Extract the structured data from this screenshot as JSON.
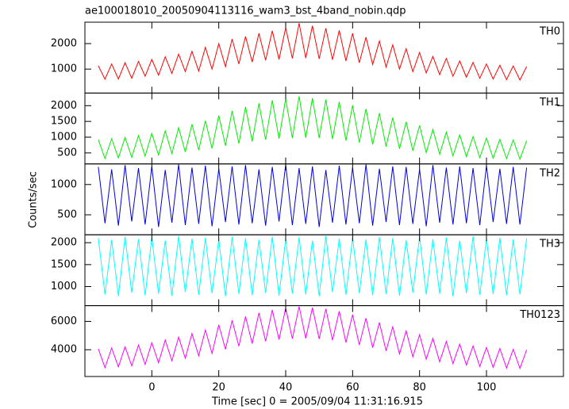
{
  "chart_data": {
    "type": "line",
    "title": "ae100018010_20050904113116_wam3_bst_4band_nobin.qdp",
    "xlabel": "Time [sec] 0 = 2005/09/04 11:31:16.915",
    "ylabel": "Counts/sec",
    "xlim": [
      -20,
      123
    ],
    "xticks": [
      0,
      20,
      40,
      60,
      80,
      100
    ],
    "x": [
      -16,
      -14,
      -12,
      -10,
      -8,
      -6,
      -4,
      -2,
      0,
      2,
      4,
      6,
      8,
      10,
      12,
      14,
      16,
      18,
      20,
      22,
      24,
      26,
      28,
      30,
      32,
      34,
      36,
      38,
      40,
      42,
      44,
      46,
      48,
      50,
      52,
      54,
      56,
      58,
      60,
      62,
      64,
      66,
      68,
      70,
      72,
      74,
      76,
      78,
      80,
      82,
      84,
      86,
      88,
      90,
      92,
      94,
      96,
      98,
      100,
      102,
      104,
      106,
      108,
      110,
      112
    ],
    "series": [
      {
        "name": "TH0",
        "color": "#ff0000",
        "ylim": [
          60,
          2840
        ],
        "yticks": [
          1000,
          2000
        ],
        "values": [
          1130,
          600,
          1200,
          610,
          1250,
          640,
          1300,
          720,
          1380,
          760,
          1480,
          830,
          1590,
          900,
          1700,
          920,
          1850,
          1000,
          2000,
          1100,
          2180,
          1200,
          2280,
          1280,
          2400,
          1350,
          2500,
          1380,
          2620,
          1420,
          2800,
          1430,
          2700,
          1400,
          2600,
          1370,
          2520,
          1320,
          2400,
          1250,
          2250,
          1180,
          2100,
          1080,
          1950,
          1000,
          1800,
          900,
          1650,
          850,
          1500,
          780,
          1420,
          720,
          1320,
          680,
          1260,
          640,
          1200,
          610,
          1150,
          590,
          1120,
          570,
          1100
        ]
      },
      {
        "name": "TH1",
        "color": "#00ee00",
        "ylim": [
          150,
          2400
        ],
        "yticks": [
          500,
          1000,
          1500,
          2000
        ],
        "values": [
          920,
          320,
          950,
          340,
          990,
          360,
          1050,
          400,
          1120,
          430,
          1200,
          480,
          1300,
          530,
          1410,
          590,
          1520,
          640,
          1690,
          730,
          1830,
          800,
          1960,
          860,
          2070,
          920,
          2170,
          950,
          2220,
          970,
          2300,
          980,
          2240,
          970,
          2190,
          940,
          2120,
          890,
          2010,
          830,
          1900,
          770,
          1760,
          700,
          1620,
          630,
          1490,
          570,
          1370,
          510,
          1250,
          460,
          1160,
          410,
          1070,
          380,
          1020,
          350,
          970,
          330,
          930,
          320,
          910,
          300,
          890
        ]
      },
      {
        "name": "TH2",
        "color": "#0000dd",
        "ylim": [
          170,
          1340
        ],
        "yticks": [
          500,
          1000
        ],
        "values": [
          1290,
          360,
          1250,
          320,
          1320,
          390,
          1270,
          340,
          1300,
          300,
          1240,
          370,
          1330,
          330,
          1280,
          350,
          1310,
          310,
          1260,
          380,
          1300,
          340,
          1320,
          360,
          1250,
          320,
          1290,
          390,
          1330,
          330,
          1270,
          350,
          1300,
          300,
          1240,
          370,
          1310,
          340,
          1280,
          360,
          1330,
          320,
          1260,
          380,
          1300,
          330,
          1290,
          350,
          1250,
          310,
          1320,
          370,
          1280,
          340,
          1300,
          360,
          1270,
          330,
          1310,
          380,
          1260,
          350,
          1290,
          340,
          1280
        ]
      },
      {
        "name": "TH3",
        "color": "#00ffff",
        "ylim": [
          565,
          2180
        ],
        "yticks": [
          1000,
          1500,
          2000
        ],
        "values": [
          2100,
          820,
          2060,
          780,
          2140,
          860,
          2080,
          800,
          2120,
          840,
          2050,
          790,
          2150,
          870,
          2090,
          810,
          2110,
          850,
          2070,
          780,
          2130,
          830,
          2100,
          800,
          2060,
          860,
          2140,
          790,
          2080,
          840,
          2120,
          820,
          2050,
          780,
          2150,
          870,
          2090,
          810,
          2110,
          850,
          2070,
          800,
          2130,
          830,
          2100,
          790,
          2060,
          860,
          2140,
          820,
          2080,
          840,
          2120,
          780,
          2050,
          850,
          2150,
          810,
          2090,
          830,
          2110,
          800,
          2070,
          820,
          2100
        ]
      },
      {
        "name": "TH0123",
        "color": "#ff00ff",
        "ylim": [
          2110,
          7110
        ],
        "yticks": [
          4000,
          6000
        ],
        "values": [
          4060,
          2730,
          4120,
          2790,
          4210,
          2860,
          4330,
          2960,
          4490,
          3080,
          4680,
          3220,
          4890,
          3390,
          5140,
          3570,
          5390,
          3740,
          5760,
          4030,
          6070,
          4250,
          6350,
          4430,
          6600,
          4600,
          6810,
          4710,
          6940,
          4780,
          7050,
          4800,
          6970,
          4760,
          6880,
          4670,
          6720,
          4510,
          6470,
          4340,
          6230,
          4140,
          5920,
          3920,
          5610,
          3700,
          5330,
          3500,
          5050,
          3330,
          4800,
          3150,
          4580,
          3020,
          4400,
          2910,
          4270,
          2820,
          4160,
          2750,
          4090,
          2710,
          4020,
          2680,
          3990
        ]
      }
    ]
  }
}
